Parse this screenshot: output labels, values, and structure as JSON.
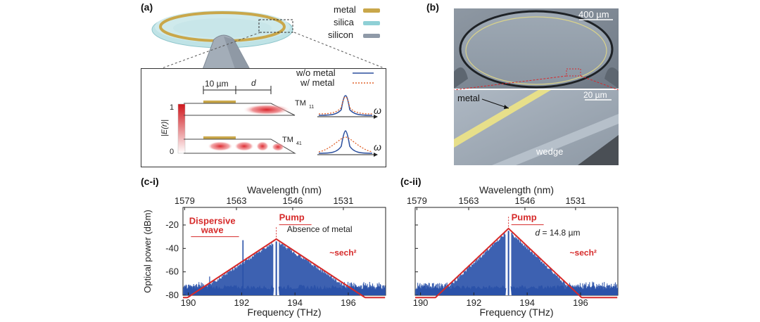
{
  "panel_a": {
    "label": "(a)",
    "legend": [
      {
        "label": "metal",
        "color": "#c9a74a"
      },
      {
        "label": "silica",
        "color": "#8fd0d6"
      },
      {
        "label": "silicon",
        "color": "#8f9aa8"
      }
    ],
    "inset": {
      "dim_10um": "10 µm",
      "dim_d": "d",
      "scale_max": "1",
      "scale_min": "0",
      "scale_label": "|E(r)|",
      "mode_top": "TM",
      "mode_top_sub": "11",
      "mode_bottom": "TM",
      "mode_bottom_sub": "41",
      "legend_wo": "w/o metal",
      "legend_w": "w/ metal",
      "omega": "ω",
      "color_wo": "#2b4f9e",
      "color_w": "#e0622a"
    }
  },
  "panel_b": {
    "label": "(b)",
    "scale_top": "400 µm",
    "scale_bottom": "20 µm",
    "label_metal": "metal",
    "label_wedge": "wedge"
  },
  "chart_data": [
    {
      "type": "area",
      "panel_label": "(c-i)",
      "top_axis_label": "Wavelength (nm)",
      "top_ticks": [
        "1579",
        "1563",
        "1546",
        "1531"
      ],
      "xlabel": "Frequency (THz)",
      "ylabel": "Optical power (dBm)",
      "x_ticks": [
        "190",
        "192",
        "194",
        "196"
      ],
      "y_ticks": [
        "-20",
        "-40",
        "-60",
        "-80"
      ],
      "xlim": [
        189.8,
        197.4
      ],
      "ylim": [
        -80,
        -5
      ],
      "pump_freq": 193.3,
      "envelope_peak": -32,
      "envelope_slope_db_per_thz": 15,
      "fill_color": "#2850a8",
      "envelope_color": "#d62a2a",
      "dispersive_wave_freq": 192.05,
      "dispersive_wave_level": -33,
      "annotations": {
        "pump": "Pump",
        "dispersive": "Dispersive",
        "wave": "wave",
        "absence": "Absence of metal",
        "sech": "~sech²"
      }
    },
    {
      "type": "area",
      "panel_label": "(c-ii)",
      "top_axis_label": "Wavelength (nm)",
      "top_ticks": [
        "1579",
        "1563",
        "1546",
        "1531"
      ],
      "xlabel": "Frequency (THz)",
      "ylabel": "",
      "x_ticks": [
        "190",
        "192",
        "194",
        "196"
      ],
      "y_ticks": [],
      "xlim": [
        189.8,
        197.4
      ],
      "ylim": [
        -80,
        -5
      ],
      "pump_freq": 193.3,
      "envelope_peak": -23,
      "envelope_slope_db_per_thz": 21.5,
      "fill_color": "#2850a8",
      "envelope_color": "#d62a2a",
      "annotations": {
        "pump": "Pump",
        "d_label": "d",
        "d_value": " = 14.8 µm",
        "sech": "~sech²"
      }
    }
  ]
}
